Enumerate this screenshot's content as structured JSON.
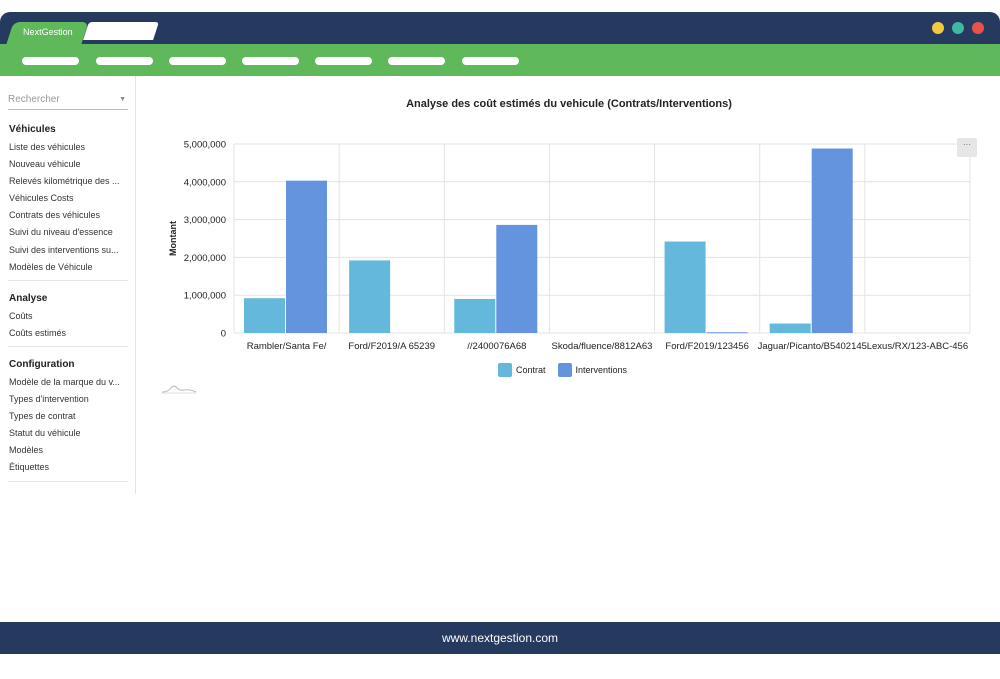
{
  "app": {
    "tab_label": "NextGestion",
    "footer_url": "www.nextgestion.com",
    "window_dots": [
      "#f5c842",
      "#3fb8a0",
      "#e8524c"
    ]
  },
  "sidebar": {
    "search_placeholder": "Rechercher",
    "sections": [
      {
        "title": "Véhicules",
        "items": [
          "Liste des véhicules",
          "Nouveau véhicule",
          "Relevés kilométrique des ...",
          "Véhicules Costs",
          "Contrats des véhicules",
          "Suivi du niveau d'essence",
          "Suivi des interventions su...",
          "Modèles de Véhicule"
        ]
      },
      {
        "title": "Analyse",
        "items": [
          "Coûts",
          "Coûts estimés"
        ]
      },
      {
        "title": "Configuration",
        "items": [
          "Modèle de la marque du v...",
          "Types d'intervention",
          "Types de contrat",
          "Statut du véhicule",
          "Modèles",
          "Étiquettes"
        ]
      }
    ]
  },
  "chart": {
    "more_label": "···"
  },
  "chart_data": {
    "type": "bar",
    "title": "Analyse des coût estimés du vehicule (Contrats/Interventions)",
    "xlabel": "",
    "ylabel": "Montant",
    "ylim": [
      0,
      5000000
    ],
    "yticks": [
      "0",
      "1,000,000",
      "2,000,000",
      "3,000,000",
      "4,000,000",
      "5,000,000"
    ],
    "ytick_values": [
      0,
      1000000,
      2000000,
      3000000,
      4000000,
      5000000
    ],
    "categories": [
      "Rambler/Santa Fe/",
      "Ford/F2019/A 65239",
      "//2400076A68",
      "Skoda/fluence/8812A63",
      "Ford/F2019/123456",
      "Jaguar/Picanto/B5402145",
      "Lexus/RX/123-ABC-456"
    ],
    "series": [
      {
        "name": "Contrat",
        "color": "#63b8dc",
        "values": [
          920000,
          1920000,
          900000,
          0,
          2420000,
          250000,
          0
        ]
      },
      {
        "name": "Interventions",
        "color": "#6494dd",
        "values": [
          4030000,
          0,
          2860000,
          0,
          20000,
          4880000,
          0
        ]
      }
    ],
    "legend": "bottom-center",
    "grid": true
  }
}
